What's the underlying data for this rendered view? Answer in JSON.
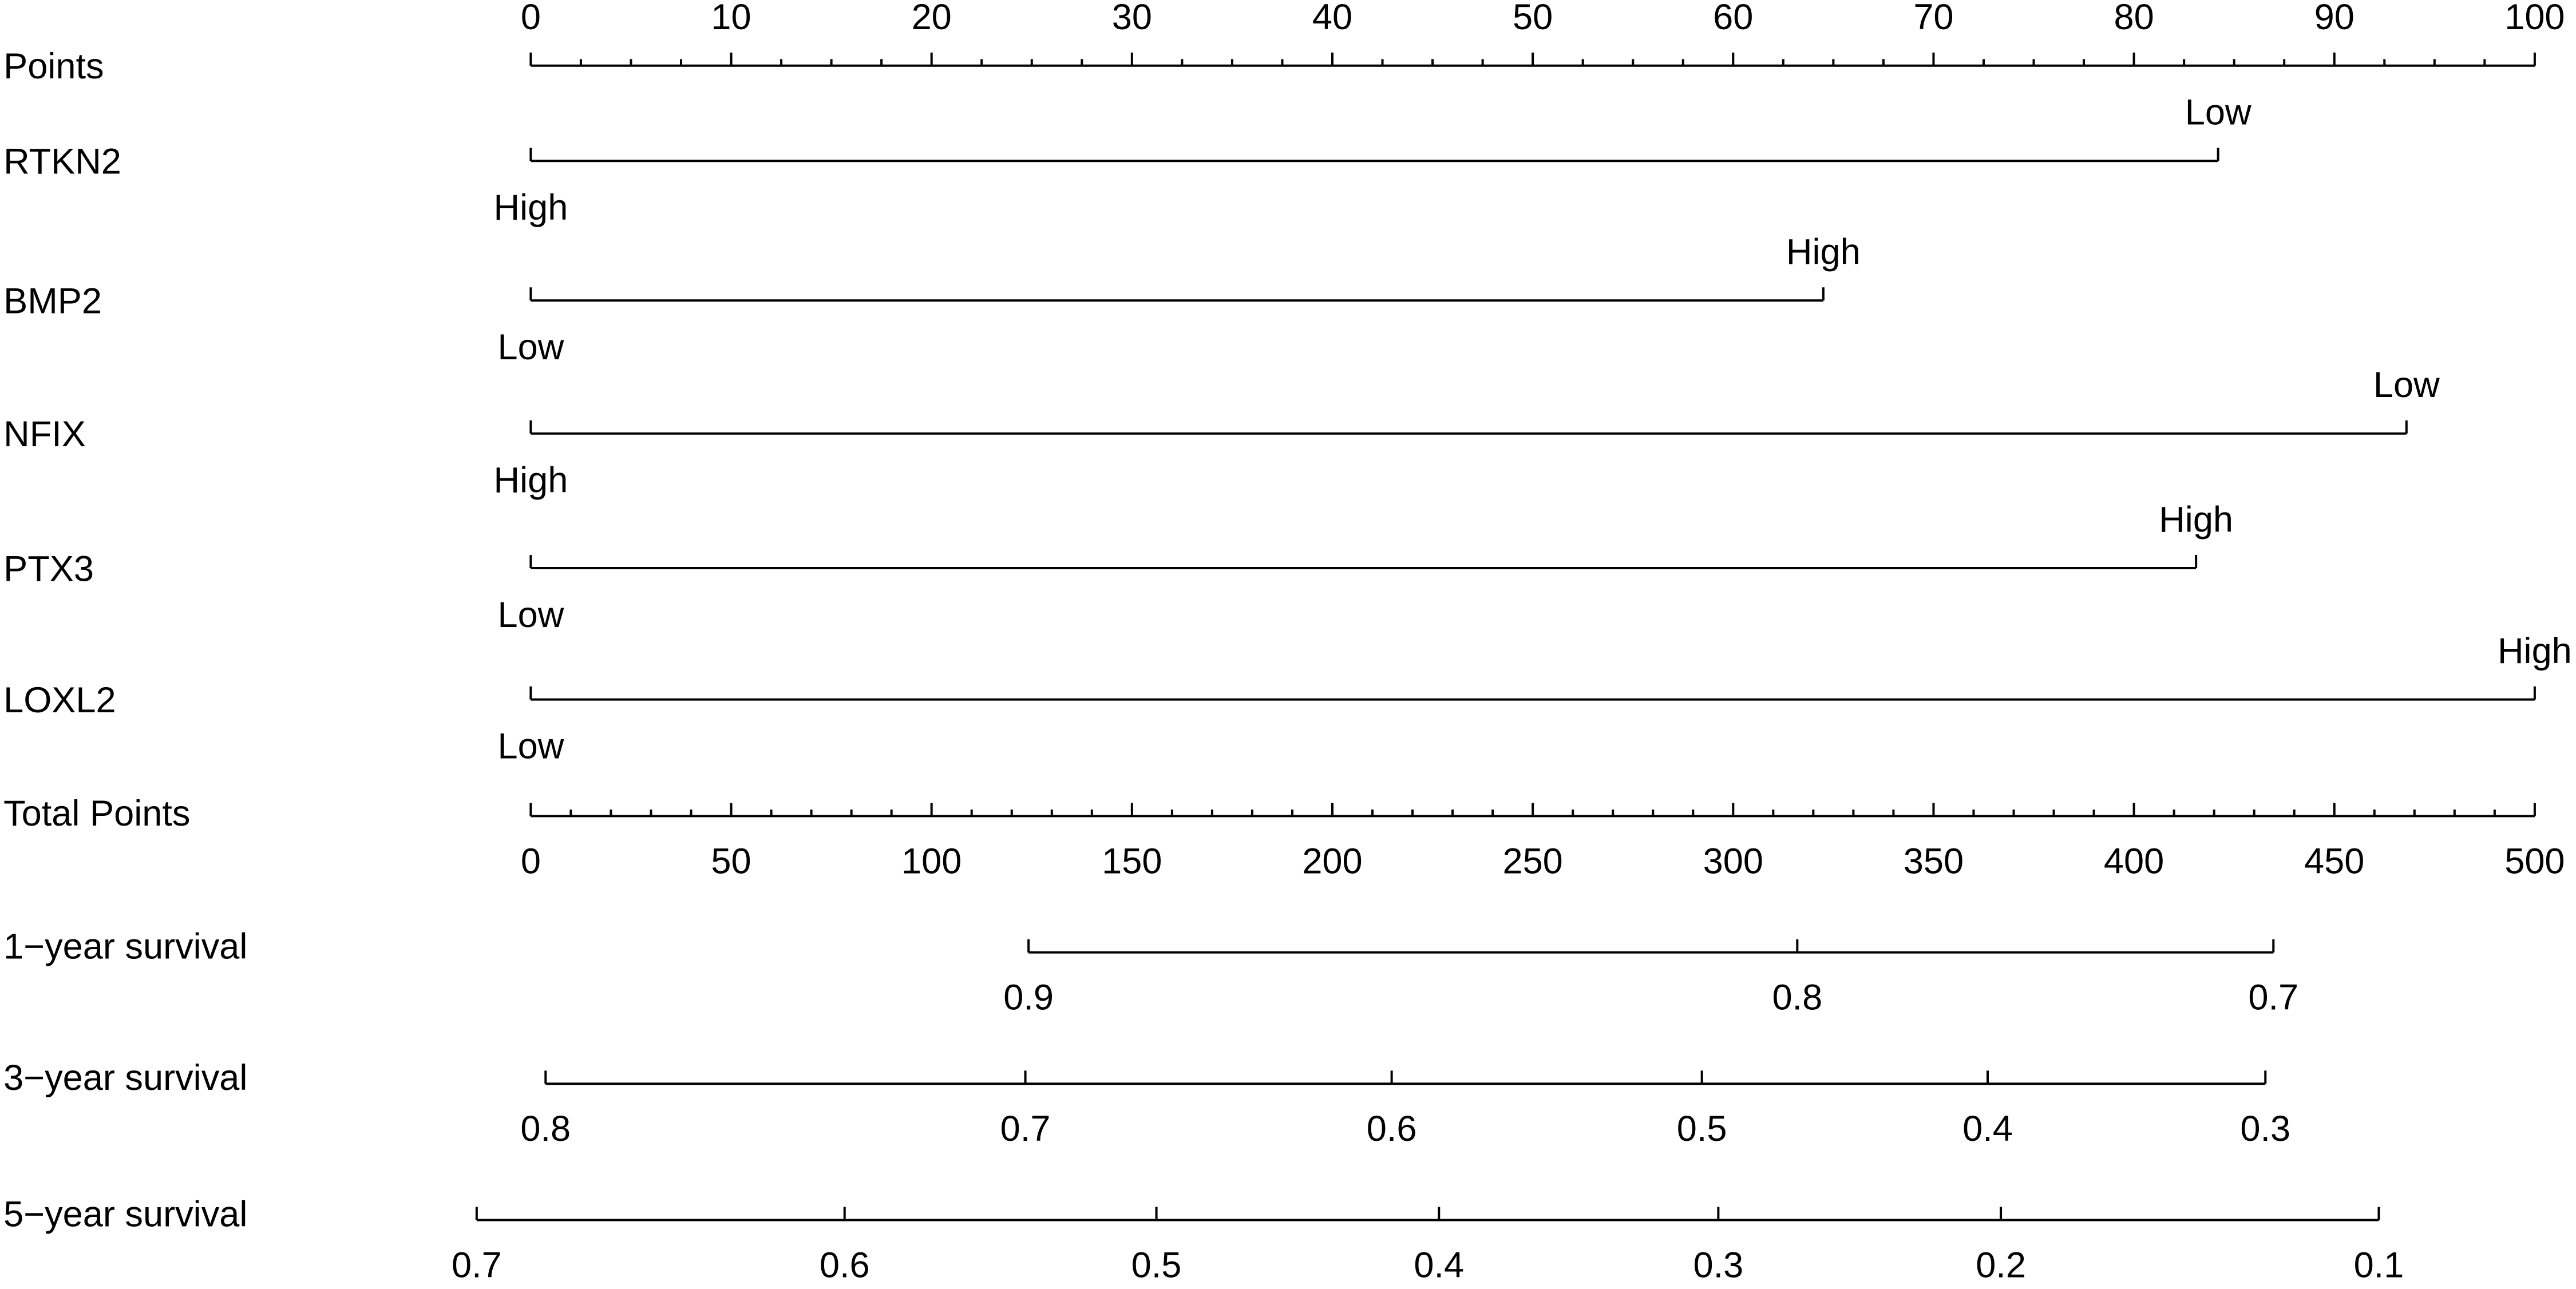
{
  "chart_data": {
    "type": "nomogram",
    "points_axis": {
      "name": "Points",
      "xlim": [
        0,
        100
      ],
      "xticks": [
        0,
        10,
        20,
        30,
        40,
        50,
        60,
        70,
        80,
        90,
        100
      ],
      "minor_ticks": [
        2.5,
        5,
        7.5,
        12.5,
        15,
        17.5,
        22.5,
        25,
        27.5,
        32.5,
        35,
        37.5,
        42.5,
        45,
        47.5,
        52.5,
        55,
        57.5,
        62.5,
        65,
        67.5,
        72.5,
        75,
        77.5,
        82.5,
        85,
        87.5,
        92.5,
        95,
        97.5
      ]
    },
    "variables": [
      {
        "name": "RTKN2",
        "levels": [
          "High",
          "Low"
        ],
        "points": [
          0,
          84.2
        ]
      },
      {
        "name": "BMP2",
        "levels": [
          "Low",
          "High"
        ],
        "points": [
          0,
          64.5
        ]
      },
      {
        "name": "NFIX",
        "levels": [
          "High",
          "Low"
        ],
        "points": [
          0,
          93.6
        ]
      },
      {
        "name": "PTX3",
        "levels": [
          "Low",
          "High"
        ],
        "points": [
          0,
          83.1
        ]
      },
      {
        "name": "LOXL2",
        "levels": [
          "Low",
          "High"
        ],
        "points": [
          0,
          100
        ]
      }
    ],
    "total_points_axis": {
      "name": "Total Points",
      "xlim": [
        0,
        500
      ],
      "xticks": [
        0,
        50,
        100,
        150,
        200,
        250,
        300,
        350,
        400,
        450,
        500
      ],
      "minor_ticks": [
        10,
        20,
        30,
        40,
        60,
        70,
        80,
        90,
        110,
        120,
        130,
        140,
        160,
        170,
        180,
        190,
        210,
        220,
        230,
        240,
        260,
        270,
        280,
        290,
        310,
        320,
        330,
        340,
        360,
        370,
        380,
        390,
        410,
        420,
        430,
        440,
        460,
        470,
        480,
        490
      ]
    },
    "survival_axes": [
      {
        "name": "1−year survival",
        "probabilities": [
          0.9,
          0.8,
          0.7
        ],
        "total_points": [
          124.2,
          316.0,
          434.8
        ]
      },
      {
        "name": "3−year survival",
        "probabilities": [
          0.8,
          0.7,
          0.6,
          0.5,
          0.4,
          0.3
        ],
        "total_points": [
          3.7,
          123.4,
          214.8,
          292.2,
          363.5,
          432.8
        ]
      },
      {
        "name": "5−year survival",
        "probabilities": [
          0.7,
          0.6,
          0.5,
          0.4,
          0.3,
          0.2,
          0.1
        ],
        "total_points": [
          -13.5,
          78.3,
          156.1,
          226.6,
          296.3,
          366.8,
          461.1
        ]
      }
    ]
  }
}
